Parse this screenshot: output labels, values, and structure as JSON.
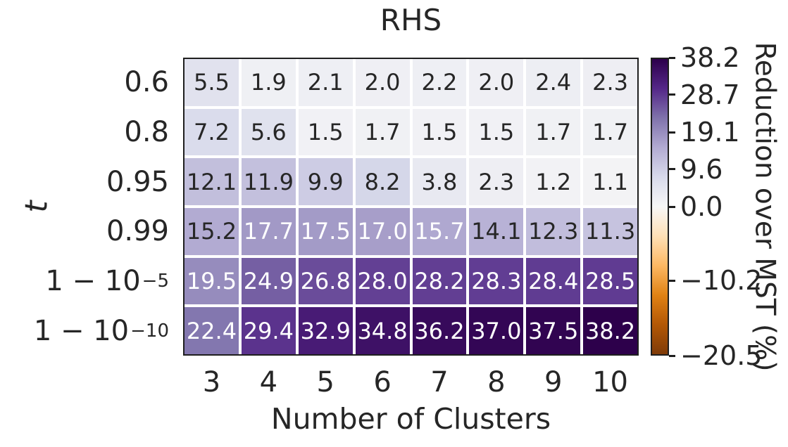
{
  "chart_data": {
    "type": "heatmap",
    "title": "RHS",
    "xlabel": "Number of Clusters",
    "ylabel": "t",
    "x_ticklabels": [
      "3",
      "4",
      "5",
      "6",
      "7",
      "8",
      "9",
      "10"
    ],
    "y_ticklabels": [
      {
        "base": "0.6",
        "sup": ""
      },
      {
        "base": "0.8",
        "sup": ""
      },
      {
        "base": "0.95",
        "sup": ""
      },
      {
        "base": "0.99",
        "sup": ""
      },
      {
        "base": "1 − 10",
        "sup": "−5"
      },
      {
        "base": "1 − 10",
        "sup": "−10"
      }
    ],
    "values": [
      [
        5.5,
        1.9,
        2.1,
        2.0,
        2.2,
        2.0,
        2.4,
        2.3
      ],
      [
        7.2,
        5.6,
        1.5,
        1.7,
        1.5,
        1.5,
        1.7,
        1.7
      ],
      [
        12.1,
        11.9,
        9.9,
        8.2,
        3.8,
        2.3,
        1.2,
        1.1
      ],
      [
        15.2,
        17.7,
        17.5,
        17.0,
        15.7,
        14.1,
        12.3,
        11.3
      ],
      [
        19.5,
        24.9,
        26.8,
        28.0,
        28.2,
        28.3,
        28.4,
        28.5
      ],
      [
        22.4,
        29.4,
        32.9,
        34.8,
        36.2,
        37.0,
        37.5,
        38.2
      ]
    ],
    "value_decimals": 1,
    "colorbar": {
      "label": "Reduction over MST (%)",
      "tick_labels": [
        "38.2",
        "28.7",
        "19.1",
        "9.6",
        "0.0",
        "-10.2",
        "-20.5"
      ],
      "tick_values": [
        38.2,
        28.7,
        19.1,
        9.6,
        0.0,
        -10.2,
        -20.5
      ],
      "vmin": -20.5,
      "vcenter": 0.0,
      "vmax": 38.2
    },
    "colormap": {
      "name": "PuOr",
      "anchors": [
        "#7f3b08",
        "#b35806",
        "#e08214",
        "#fdb863",
        "#fee0b6",
        "#f7f7f7",
        "#d8daeb",
        "#b2abd2",
        "#8073ac",
        "#542788",
        "#2d004b"
      ]
    },
    "annotation_colors": {
      "dark": "#262626",
      "light": "#ffffff"
    },
    "grid_gap_color": "#ffffff",
    "axis_color": "#1f1f1f",
    "legend_position": "right",
    "grid": false
  }
}
